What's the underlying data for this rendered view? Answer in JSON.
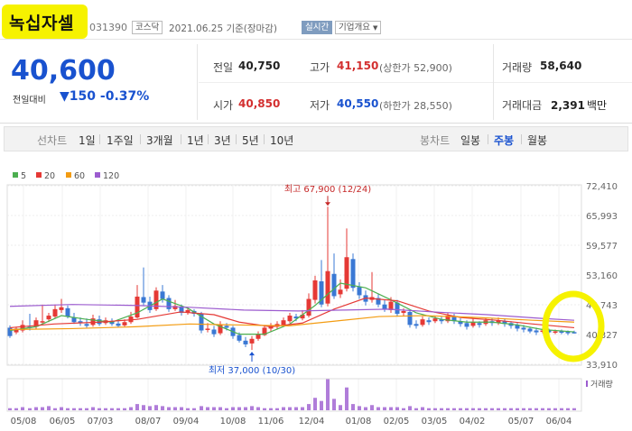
{
  "header": {
    "name": "녹십자셀",
    "code": "031390",
    "market": "코스닥",
    "date": "2021.06.25 기준(장마감)",
    "realtime": "실시간",
    "company_info": "기업개요"
  },
  "summary": {
    "price": "40,600",
    "change_label": "전일대비",
    "change_arrow": "▼",
    "change_value": "150",
    "change_pct": "-0.37%",
    "prev_close_label": "전일",
    "prev_close": "40,750",
    "high_label": "고가",
    "high": "41,150",
    "upper_limit": "(상한가 52,900)",
    "volume_label": "거래량",
    "volume": "58,640",
    "open_label": "시가",
    "open": "40,850",
    "low_label": "저가",
    "low": "40,550",
    "lower_limit": "(하한가 28,550)",
    "amount_label": "거래대금",
    "amount": "2,391",
    "amount_unit": "백만"
  },
  "controls": {
    "line_chart_label": "선차트",
    "periods": [
      "1일",
      "1주일",
      "3개월",
      "1년",
      "3년",
      "5년",
      "10년"
    ],
    "candle_label": "봉차트",
    "candle_options": [
      "일봉",
      "주봉",
      "월봉"
    ],
    "candle_selected": "주봉"
  },
  "legend": {
    "ma5": "5",
    "ma20": "20",
    "ma60": "60",
    "ma120": "120"
  },
  "colors": {
    "ma5": "#4caf50",
    "ma20": "#e53935",
    "ma60": "#f39c12",
    "ma120": "#9c5ccf",
    "up": "#e53935",
    "down": "#3a78d4",
    "highlight": "#f6f200"
  },
  "chart_data": {
    "type": "candlestick",
    "y_ticks": [
      "72,410",
      "65,993",
      "59,577",
      "53,160",
      "46,743",
      "40,327",
      "33,910"
    ],
    "ylim": [
      33910,
      72410
    ],
    "x_labels": [
      "05/08",
      "06/05",
      "07/03",
      "08/07",
      "09/04",
      "10/08",
      "11/06",
      "12/04",
      "01/08",
      "02/05",
      "03/05",
      "04/02",
      "05/07",
      "06/04"
    ],
    "high_annotation": "최고 67,900 (12/24)",
    "low_annotation": "최저 37,000 (10/30)",
    "volume_label": "거래량"
  }
}
